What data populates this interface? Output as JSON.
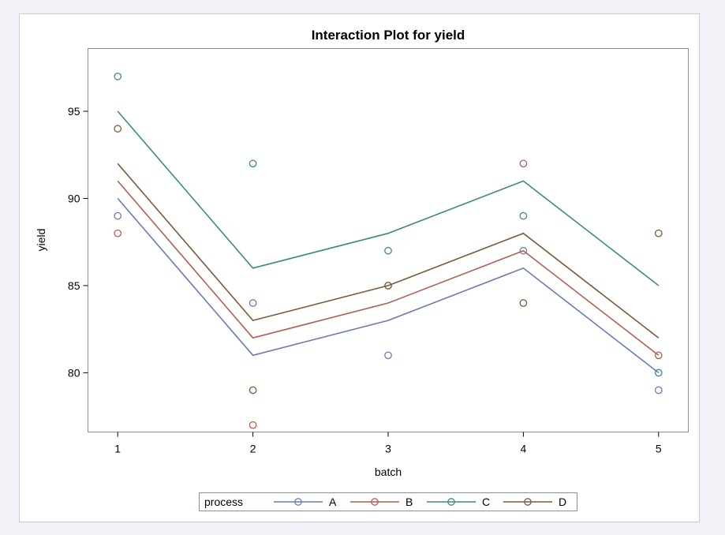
{
  "chart_data": {
    "type": "line",
    "title": "Interaction Plot for yield",
    "xlabel": "batch",
    "ylabel": "yield",
    "x": [
      1,
      2,
      3,
      4,
      5
    ],
    "xlim": [
      0.78,
      5.22
    ],
    "ylim": [
      76.6,
      98.6
    ],
    "yticks": [
      80,
      85,
      90,
      95
    ],
    "grid": false,
    "legend": {
      "title": "process",
      "position": "bottom-center"
    },
    "series": [
      {
        "name": "A",
        "color": "#6b7bb3",
        "fitted": [
          90,
          81,
          83,
          86,
          80
        ],
        "observed": [
          [
            1,
            89
          ],
          [
            2,
            84
          ],
          [
            3,
            81
          ],
          [
            4,
            87
          ],
          [
            5,
            79
          ]
        ]
      },
      {
        "name": "B",
        "color": "#b35f55",
        "fitted": [
          91,
          82,
          84,
          87,
          81
        ],
        "observed": [
          [
            1,
            88
          ],
          [
            2,
            77
          ],
          [
            3,
            85
          ],
          [
            4,
            92
          ],
          [
            5,
            81
          ]
        ]
      },
      {
        "name": "C",
        "color": "#3f8a7e",
        "fitted": [
          95,
          86,
          88,
          91,
          85
        ],
        "observed": [
          [
            1,
            97
          ],
          [
            2,
            92
          ],
          [
            3,
            87
          ],
          [
            4,
            89
          ],
          [
            5,
            80
          ]
        ]
      },
      {
        "name": "D",
        "color": "#7a5c3a",
        "fitted": [
          92,
          83,
          85,
          88,
          82
        ],
        "observed": [
          [
            1,
            94
          ],
          [
            2,
            79
          ],
          [
            3,
            85
          ],
          [
            4,
            84
          ],
          [
            5,
            88
          ]
        ]
      }
    ]
  }
}
